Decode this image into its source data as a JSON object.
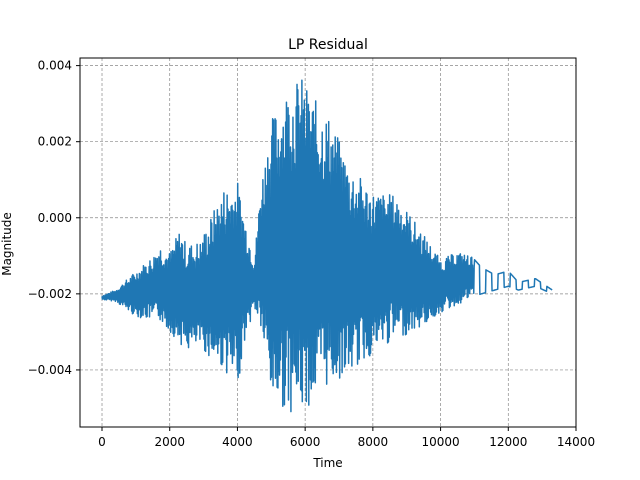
{
  "chart_data": {
    "type": "line",
    "title": "LP Residual",
    "xlabel": "Time",
    "ylabel": "Magnitude",
    "xlim": [
      -650,
      14000
    ],
    "ylim": [
      -0.0055,
      0.0042
    ],
    "xticks": [
      0,
      2000,
      4000,
      6000,
      8000,
      10000,
      12000,
      14000
    ],
    "xtick_labels": [
      "0",
      "2000",
      "4000",
      "6000",
      "8000",
      "10000",
      "12000",
      "14000"
    ],
    "yticks": [
      -0.004,
      -0.002,
      0.0,
      0.002,
      0.004
    ],
    "ytick_labels": [
      "−0.004",
      "−0.002",
      "0.000",
      "0.002",
      "0.004"
    ],
    "grid": true,
    "line_color": "#1f77b4",
    "series": [
      {
        "x_start": 0,
        "x_end": 13300,
        "baseline": -0.00215,
        "envelope": [
          {
            "x": 0,
            "upper": -0.00205,
            "lower": -0.00215
          },
          {
            "x": 400,
            "upper": -0.0019,
            "lower": -0.0022
          },
          {
            "x": 1000,
            "upper": -0.0014,
            "lower": -0.0026
          },
          {
            "x": 1500,
            "upper": -0.001,
            "lower": -0.0027
          },
          {
            "x": 1700,
            "upper": -0.0007,
            "lower": -0.0027
          },
          {
            "x": 2000,
            "upper": -0.0009,
            "lower": -0.003
          },
          {
            "x": 2300,
            "upper": -0.0003,
            "lower": -0.0033
          },
          {
            "x": 2500,
            "upper": -0.0007,
            "lower": -0.0035
          },
          {
            "x": 2900,
            "upper": -0.0006,
            "lower": -0.0034
          },
          {
            "x": 3200,
            "upper": 0.0,
            "lower": -0.0037
          },
          {
            "x": 3600,
            "upper": 0.0008,
            "lower": -0.004
          },
          {
            "x": 4000,
            "upper": 0.001,
            "lower": -0.0045
          },
          {
            "x": 4200,
            "upper": 0.0001,
            "lower": -0.0033
          },
          {
            "x": 4500,
            "upper": -0.0011,
            "lower": -0.0024
          },
          {
            "x": 4700,
            "upper": 0.001,
            "lower": -0.003
          },
          {
            "x": 5000,
            "upper": 0.0026,
            "lower": -0.0048
          },
          {
            "x": 5500,
            "upper": 0.0035,
            "lower": -0.0051
          },
          {
            "x": 5900,
            "upper": 0.0037,
            "lower": -0.0051
          },
          {
            "x": 6200,
            "upper": 0.0032,
            "lower": -0.0049
          },
          {
            "x": 6700,
            "upper": 0.0027,
            "lower": -0.0044
          },
          {
            "x": 7300,
            "upper": 0.0014,
            "lower": -0.0041
          },
          {
            "x": 8000,
            "upper": 0.0007,
            "lower": -0.0036
          },
          {
            "x": 8700,
            "upper": 0.0006,
            "lower": -0.0032
          },
          {
            "x": 9400,
            "upper": -0.0003,
            "lower": -0.0029
          },
          {
            "x": 10000,
            "upper": -0.0011,
            "lower": -0.0025
          },
          {
            "x": 10500,
            "upper": -0.0009,
            "lower": -0.0023
          },
          {
            "x": 10900,
            "upper": -0.001,
            "lower": -0.0021
          },
          {
            "x": 11200,
            "upper": -0.0013,
            "lower": -0.002
          },
          {
            "x": 11600,
            "upper": -0.0015,
            "lower": -0.0019
          },
          {
            "x": 12000,
            "upper": -0.0014,
            "lower": -0.0018
          },
          {
            "x": 12300,
            "upper": -0.0017,
            "lower": -0.0019
          },
          {
            "x": 12800,
            "upper": -0.0016,
            "lower": -0.0018
          },
          {
            "x": 13300,
            "upper": -0.0019,
            "lower": -0.002
          }
        ]
      }
    ]
  }
}
